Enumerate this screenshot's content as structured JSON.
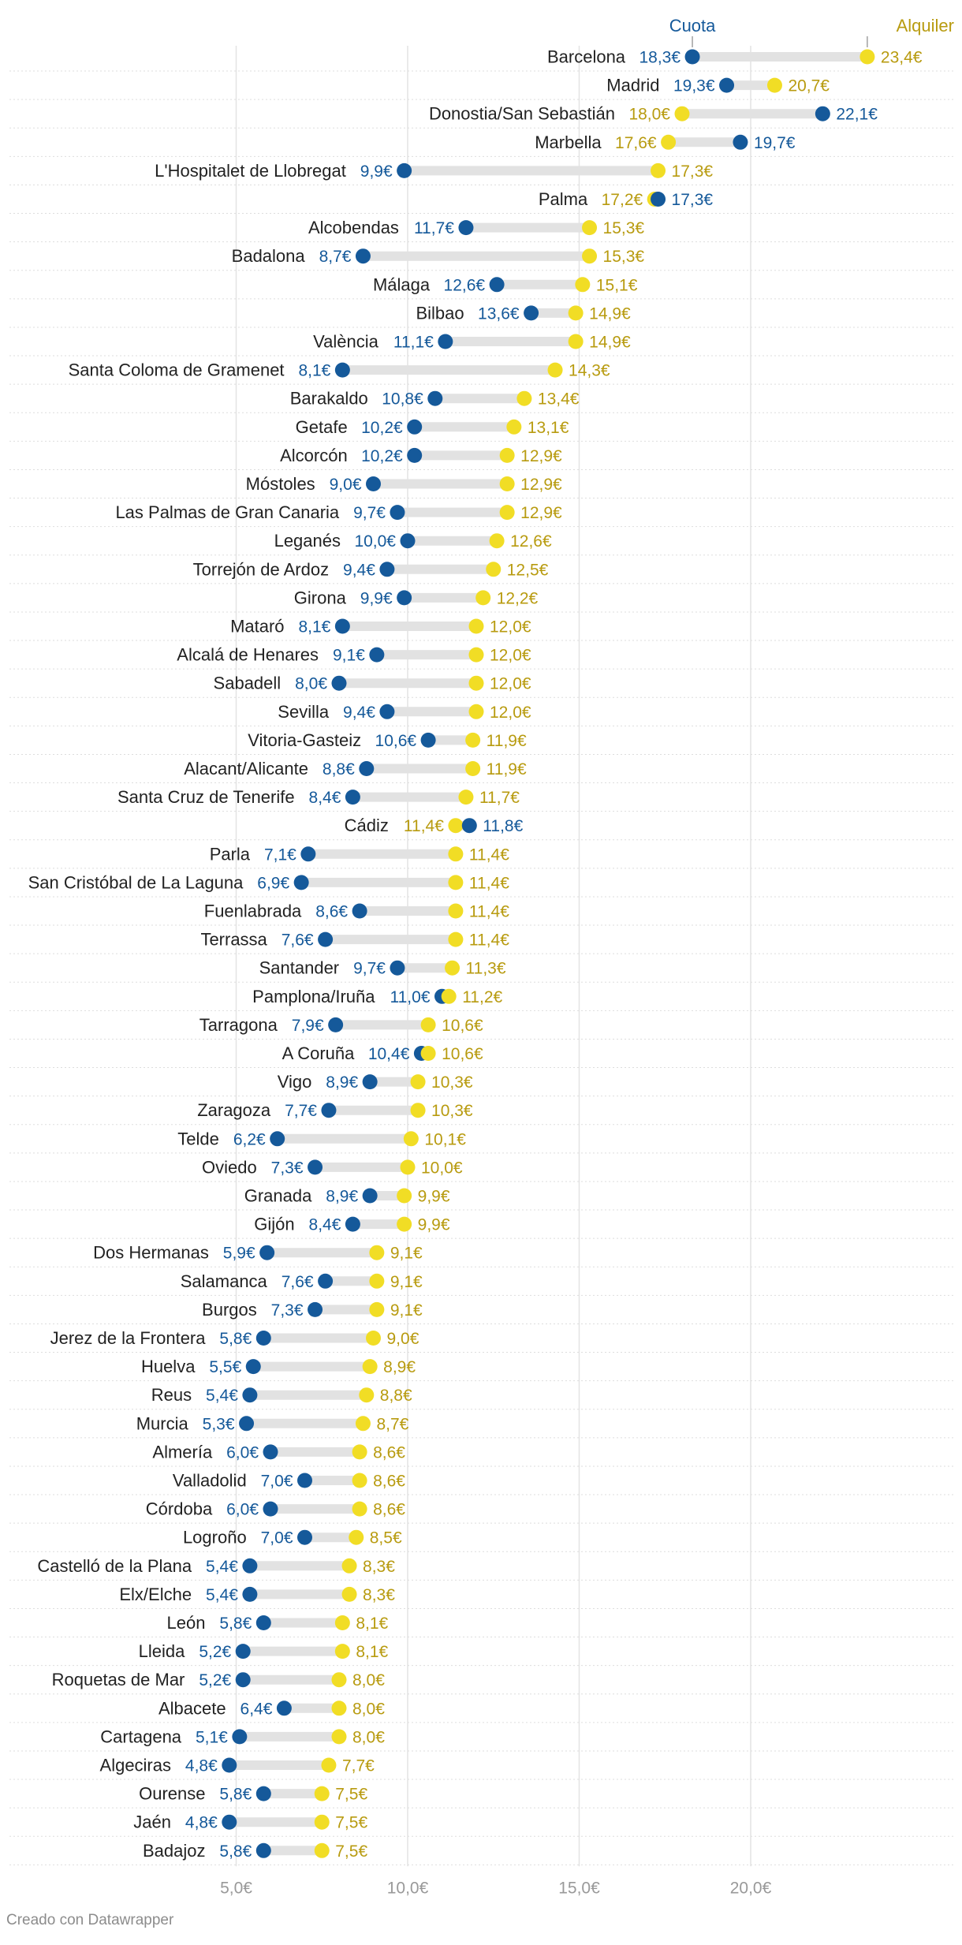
{
  "chart_data": {
    "type": "dot-range",
    "title": "",
    "xlabel": "",
    "ylabel": "",
    "xlim": [
      2.0,
      24.0
    ],
    "xticks": [
      5,
      10,
      15,
      20
    ],
    "tick_labels": [
      "5,0€",
      "10,0€",
      "15,0€",
      "20,0€"
    ],
    "legend": [
      {
        "key": "cuota",
        "label": "Cuota",
        "color": "#15599a"
      },
      {
        "key": "alquiler",
        "label": "Alquiler",
        "color": "#f1dd25"
      }
    ],
    "label_colors": {
      "cuota": "#15599a",
      "alquiler": "#b89b10"
    },
    "series_keys": [
      "cuota",
      "alquiler"
    ],
    "categories": [
      "Barcelona",
      "Madrid",
      "Donostia/San Sebastián",
      "Marbella",
      "L'Hospitalet de Llobregat",
      "Palma",
      "Alcobendas",
      "Badalona",
      "Málaga",
      "Bilbao",
      "València",
      "Santa Coloma de Gramenet",
      "Barakaldo",
      "Getafe",
      "Alcorcón",
      "Móstoles",
      "Las Palmas de Gran Canaria",
      "Leganés",
      "Torrejón de Ardoz",
      "Girona",
      "Mataró",
      "Alcalá de Henares",
      "Sabadell",
      "Sevilla",
      "Vitoria-Gasteiz",
      "Alacant/Alicante",
      "Santa Cruz de Tenerife",
      "Cádiz",
      "Parla",
      "San Cristóbal de La Laguna",
      "Fuenlabrada",
      "Terrassa",
      "Santander",
      "Pamplona/Iruña",
      "Tarragona",
      "A Coruña",
      "Vigo",
      "Zaragoza",
      "Telde",
      "Oviedo",
      "Granada",
      "Gijón",
      "Dos Hermanas",
      "Salamanca",
      "Burgos",
      "Jerez de la Frontera",
      "Huelva",
      "Reus",
      "Murcia",
      "Almería",
      "Valladolid",
      "Córdoba",
      "Logroño",
      "Castelló de la Plana",
      "Elx/Elche",
      "León",
      "Lleida",
      "Roquetas de Mar",
      "Albacete",
      "Cartagena",
      "Algeciras",
      "Ourense",
      "Jaén",
      "Badajoz"
    ],
    "cuota": [
      18.3,
      19.3,
      22.1,
      19.7,
      9.9,
      17.3,
      11.7,
      8.7,
      12.6,
      13.6,
      11.1,
      8.1,
      10.8,
      10.2,
      10.2,
      9.0,
      9.7,
      10.0,
      9.4,
      9.9,
      8.1,
      9.1,
      8.0,
      9.4,
      10.6,
      8.8,
      8.4,
      11.8,
      7.1,
      6.9,
      8.6,
      7.6,
      9.7,
      11.0,
      7.9,
      10.4,
      8.9,
      7.7,
      6.2,
      7.3,
      8.9,
      8.4,
      5.9,
      7.6,
      7.3,
      5.8,
      5.5,
      5.4,
      5.3,
      6.0,
      7.0,
      6.0,
      7.0,
      5.4,
      5.4,
      5.8,
      5.2,
      5.2,
      6.4,
      5.1,
      4.8,
      5.8,
      4.8,
      5.8
    ],
    "alquiler": [
      23.4,
      20.7,
      18.0,
      17.6,
      17.3,
      17.2,
      15.3,
      15.3,
      15.1,
      14.9,
      14.9,
      14.3,
      13.4,
      13.1,
      12.9,
      12.9,
      12.9,
      12.6,
      12.5,
      12.2,
      12.0,
      12.0,
      12.0,
      12.0,
      11.9,
      11.9,
      11.7,
      11.4,
      11.4,
      11.4,
      11.4,
      11.4,
      11.3,
      11.2,
      10.6,
      10.6,
      10.3,
      10.3,
      10.1,
      10.0,
      9.9,
      9.9,
      9.1,
      9.1,
      9.1,
      9.0,
      8.9,
      8.8,
      8.7,
      8.6,
      8.6,
      8.6,
      8.5,
      8.3,
      8.3,
      8.1,
      8.1,
      8.0,
      8.0,
      8.0,
      7.7,
      7.5,
      7.5,
      7.5
    ],
    "cuota_labels": [
      "18,3€",
      "19,3€",
      "22,1€",
      "19,7€",
      "9,9€",
      "17,3€",
      "11,7€",
      "8,7€",
      "12,6€",
      "13,6€",
      "11,1€",
      "8,1€",
      "10,8€",
      "10,2€",
      "10,2€",
      "9,0€",
      "9,7€",
      "10,0€",
      "9,4€",
      "9,9€",
      "8,1€",
      "9,1€",
      "8,0€",
      "9,4€",
      "10,6€",
      "8,8€",
      "8,4€",
      "11,8€",
      "7,1€",
      "6,9€",
      "8,6€",
      "7,6€",
      "9,7€",
      "11,0€",
      "7,9€",
      "10,4€",
      "8,9€",
      "7,7€",
      "6,2€",
      "7,3€",
      "8,9€",
      "8,4€",
      "5,9€",
      "7,6€",
      "7,3€",
      "5,8€",
      "5,5€",
      "5,4€",
      "5,3€",
      "6,0€",
      "7,0€",
      "6,0€",
      "7,0€",
      "5,4€",
      "5,4€",
      "5,8€",
      "5,2€",
      "5,2€",
      "6,4€",
      "5,1€",
      "4,8€",
      "5,8€",
      "4,8€",
      "5,8€"
    ],
    "alquiler_labels": [
      "23,4€",
      "20,7€",
      "18,0€",
      "17,6€",
      "17,3€",
      "17,2€",
      "15,3€",
      "15,3€",
      "15,1€",
      "14,9€",
      "14,9€",
      "14,3€",
      "13,4€",
      "13,1€",
      "12,9€",
      "12,9€",
      "12,9€",
      "12,6€",
      "12,5€",
      "12,2€",
      "12,0€",
      "12,0€",
      "12,0€",
      "12,0€",
      "11,9€",
      "11,9€",
      "11,7€",
      "11,4€",
      "11,4€",
      "11,4€",
      "11,4€",
      "11,4€",
      "11,3€",
      "11,2€",
      "10,6€",
      "10,6€",
      "10,3€",
      "10,3€",
      "10,1€",
      "10,0€",
      "9,9€",
      "9,9€",
      "9,1€",
      "9,1€",
      "9,1€",
      "9,0€",
      "8,9€",
      "8,8€",
      "8,7€",
      "8,6€",
      "8,6€",
      "8,6€",
      "8,5€",
      "8,3€",
      "8,3€",
      "8,1€",
      "8,1€",
      "8,0€",
      "8,0€",
      "8,0€",
      "7,7€",
      "7,5€",
      "7,5€",
      "7,5€"
    ]
  },
  "footer": {
    "credit": "Creado con Datawrapper"
  }
}
